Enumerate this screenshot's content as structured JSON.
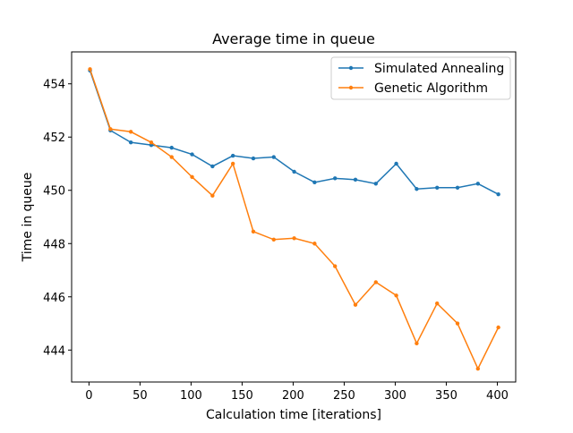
{
  "chart_data": {
    "type": "line",
    "title": "Average time in queue",
    "xlabel": "Calculation time [iterations]",
    "ylabel": "Time in queue",
    "xlim": [
      -17,
      418
    ],
    "ylim": [
      442.8,
      455.2
    ],
    "xticks": [
      0,
      50,
      100,
      150,
      200,
      250,
      300,
      350,
      400
    ],
    "yticks": [
      444,
      446,
      448,
      450,
      452,
      454
    ],
    "grid": false,
    "legend_position": "top-right",
    "x": [
      1,
      21,
      41,
      61,
      81,
      101,
      121,
      141,
      161,
      181,
      201,
      221,
      241,
      261,
      281,
      301,
      321,
      341,
      361,
      381,
      401
    ],
    "series": [
      {
        "name": "Simulated Annealing",
        "color": "#1f77b4",
        "values": [
          454.5,
          452.25,
          451.8,
          451.7,
          451.6,
          451.35,
          450.9,
          451.3,
          451.2,
          451.25,
          450.7,
          450.3,
          450.45,
          450.4,
          450.25,
          451.0,
          450.05,
          450.1,
          450.1,
          450.25,
          449.85
        ]
      },
      {
        "name": "Genetic Algorithm",
        "color": "#ff7f0e",
        "values": [
          454.55,
          452.3,
          452.2,
          451.8,
          451.25,
          450.5,
          449.8,
          451.0,
          448.45,
          448.15,
          448.2,
          448.0,
          447.15,
          445.7,
          446.55,
          446.05,
          444.25,
          445.75,
          445.0,
          443.3,
          444.85
        ]
      }
    ]
  }
}
